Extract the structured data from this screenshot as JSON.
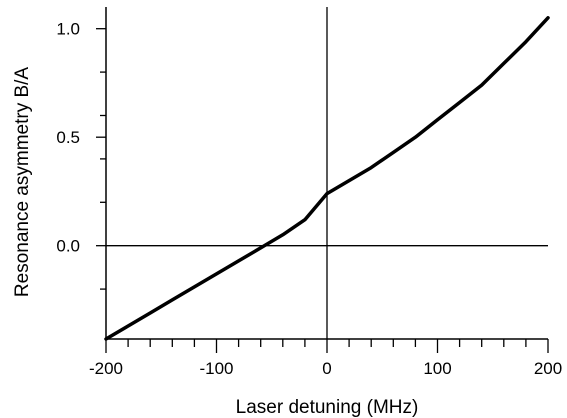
{
  "chart_data": {
    "type": "line",
    "title": "",
    "xlabel": "Laser detuning (MHz)",
    "ylabel": "Resonance asymmetry  B/A",
    "xlim": [
      -200,
      200
    ],
    "ylim": [
      -0.43,
      1.1
    ],
    "x_ticks": [
      -200,
      -100,
      0,
      100,
      200
    ],
    "x_tick_labels": [
      "-200",
      "-100",
      "0",
      "100",
      "200"
    ],
    "y_ticks": [
      0.0,
      0.5,
      1.0
    ],
    "y_tick_labels": [
      "0.0",
      "0.5",
      "1.0"
    ],
    "x_minor_tick_step": 20,
    "y_minor_ticks": [
      -0.2,
      0.2,
      0.4,
      0.6,
      0.8
    ],
    "grid": false,
    "reference_lines": {
      "horizontal_at_y": 0,
      "vertical_at_x": 0
    },
    "series": [
      {
        "x": [
          -200,
          -180,
          -160,
          -140,
          -120,
          -100,
          -80,
          -60,
          -40,
          -20,
          0,
          20,
          40,
          60,
          80,
          100,
          120,
          140,
          160,
          180,
          200
        ],
        "y": [
          -0.43,
          -0.37,
          -0.31,
          -0.25,
          -0.19,
          -0.13,
          -0.07,
          -0.01,
          0.05,
          0.12,
          0.24,
          0.3,
          0.36,
          0.43,
          0.5,
          0.58,
          0.66,
          0.74,
          0.84,
          0.94,
          1.05
        ],
        "color": "#000000"
      }
    ]
  }
}
